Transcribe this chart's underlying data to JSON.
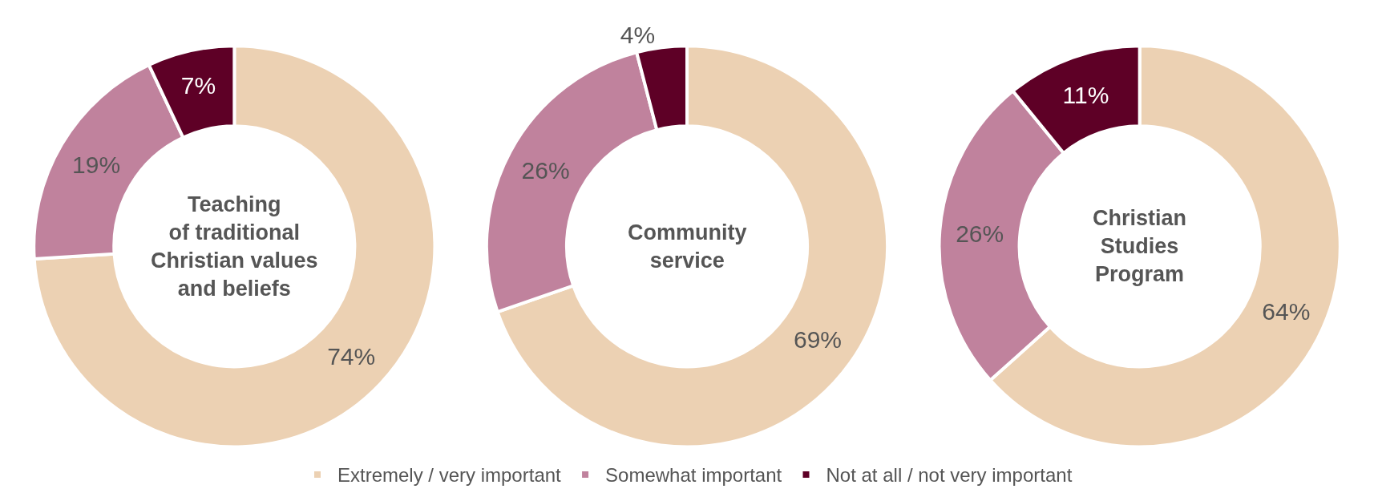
{
  "chart_data": [
    {
      "type": "donut",
      "title": "Teaching\nof traditional\nChristian values\nand beliefs",
      "categories": [
        "Extremely / very important",
        "Somewhat important",
        "Not at all / not very important"
      ],
      "values": [
        74,
        19,
        7
      ],
      "value_labels": [
        "74%",
        "19%",
        "7%"
      ],
      "colors": [
        "#ecd1b3",
        "#c0829d",
        "#5e0026"
      ],
      "legend": "bottom"
    },
    {
      "type": "donut",
      "title": "Community\nservice",
      "categories": [
        null,
        null,
        null
      ],
      "values": [
        69,
        26,
        4
      ],
      "value_labels": [
        "69%",
        "26%",
        "4%"
      ],
      "colors": [
        "#ecd1b3",
        "#c0829d",
        "#5e0026"
      ]
    },
    {
      "type": "donut",
      "title": "Christian\nStudies\nProgram",
      "categories": [
        null,
        null,
        null
      ],
      "values": [
        64,
        26,
        11
      ],
      "value_labels": [
        "64%",
        "26%",
        "11%"
      ],
      "colors": [
        "#ecd1b3",
        "#c0829d",
        "#5e0026"
      ]
    }
  ]
}
